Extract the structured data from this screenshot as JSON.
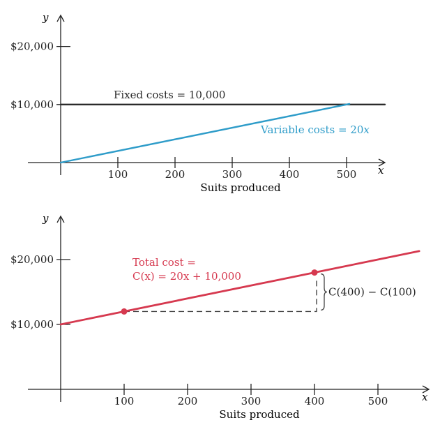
{
  "colors": {
    "fixed": "#2b2b2b",
    "variable": "#2e9cc9",
    "total": "#d6394f",
    "axis": "#222222",
    "dashed": "#444444"
  },
  "chart_data": [
    {
      "type": "line",
      "xlabel": "Suits produced",
      "x_axis_symbol": "x",
      "y_axis_symbol": "y",
      "xlim": [
        0,
        550
      ],
      "ylim": [
        0,
        25000
      ],
      "x_ticks": [
        100,
        200,
        300,
        400,
        500
      ],
      "x_tick_labels": [
        "100",
        "200",
        "300",
        "400",
        "500"
      ],
      "y_ticks": [
        10000,
        20000
      ],
      "y_tick_labels": [
        "$10,000",
        "$20,000"
      ],
      "series": [
        {
          "key": "fixed",
          "name": "Fixed costs = 10,000",
          "color": "#2b2b2b",
          "points": [
            [
              0,
              10000
            ],
            [
              505,
              10000
            ]
          ]
        },
        {
          "key": "variable",
          "name": "Variable costs = 20x",
          "label_main": "Variable costs = 20",
          "label_var": "x",
          "color": "#2e9cc9",
          "points": [
            [
              0,
              0
            ],
            [
              505,
              10100
            ]
          ]
        }
      ]
    },
    {
      "type": "line",
      "xlabel": "Suits produced",
      "x_axis_symbol": "x",
      "y_axis_symbol": "y",
      "xlim": [
        0,
        565
      ],
      "ylim": [
        0,
        22000
      ],
      "x_ticks": [
        100,
        200,
        300,
        400,
        500
      ],
      "x_tick_labels": [
        "100",
        "200",
        "300",
        "400",
        "500"
      ],
      "y_ticks": [
        10000,
        20000
      ],
      "y_tick_labels": [
        "$10,000",
        "$20,000"
      ],
      "series": [
        {
          "key": "total",
          "name": "Total cost =",
          "formula": "C(x) = 20x + 10,000",
          "color": "#d6394f",
          "points": [
            [
              0,
              10000
            ],
            [
              565,
              21300
            ]
          ]
        }
      ],
      "highlight_points": [
        [
          100,
          12000
        ],
        [
          400,
          18000
        ]
      ],
      "annotation": "C(400) − C(100)"
    }
  ]
}
